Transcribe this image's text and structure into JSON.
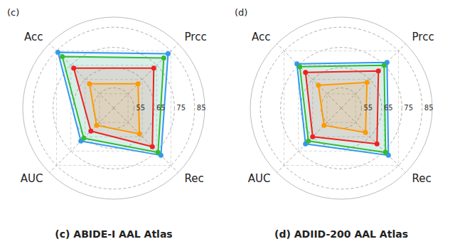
{
  "chart_data": [
    {
      "type": "radar",
      "title": "(c) ABIDE-I AAL Atlas",
      "annotations": [
        "(c)"
      ],
      "categories": [
        "Acc",
        "Prcc",
        "Rec",
        "AUC"
      ],
      "series": [
        {
          "color": "#3399EE",
          "values": [
            84,
            83,
            78,
            68
          ]
        },
        {
          "color": "#33BB33",
          "values": [
            81,
            80,
            76,
            66
          ]
        },
        {
          "color": "#EE2222",
          "values": [
            73,
            73,
            72,
            61
          ]
        },
        {
          "color": "#FF9900",
          "values": [
            62,
            62,
            63,
            57
          ]
        }
      ],
      "ylim": [
        45,
        90
      ],
      "yticks": [
        55,
        65,
        75,
        85
      ],
      "grid": true,
      "marker": "circle"
    },
    {
      "type": "radar",
      "title": "(d) ADIID-200 AAL Atlas",
      "annotations": [
        "(d)"
      ],
      "categories": [
        "Acc",
        "Prcc",
        "Rec",
        "AUC"
      ],
      "series": [
        {
          "color": "#3399EE",
          "values": [
            76,
            77,
            78,
            70
          ]
        },
        {
          "color": "#33BB33",
          "values": [
            74,
            75,
            76,
            68
          ]
        },
        {
          "color": "#EE2222",
          "values": [
            70,
            71,
            70,
            65
          ]
        },
        {
          "color": "#FF9900",
          "values": [
            61,
            63,
            62,
            57
          ]
        }
      ],
      "ylim": [
        45,
        90
      ],
      "yticks": [
        55,
        65,
        75,
        85
      ],
      "grid": true,
      "marker": "circle"
    }
  ]
}
